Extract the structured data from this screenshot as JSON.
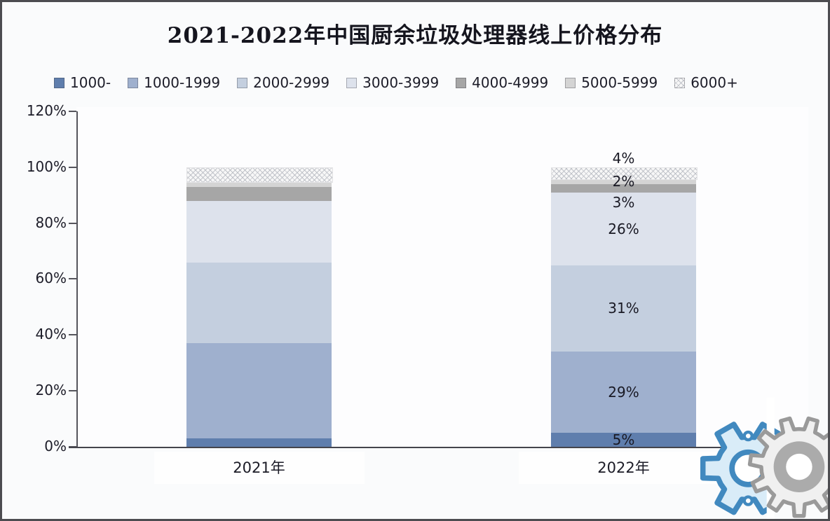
{
  "title": "2021-2022年中国厨余垃圾处理器线上价格分布",
  "legend_items": [
    "1000-",
    "1000-1999",
    "2000-2999",
    "3000-3999",
    "4000-4999",
    "5000-5999",
    "6000+"
  ],
  "y_axis": {
    "ticks": [
      "120%",
      "100%",
      "80%",
      "60%",
      "40%",
      "20%",
      "0%"
    ],
    "tick_values": [
      120,
      100,
      80,
      60,
      40,
      20,
      0
    ]
  },
  "categories": [
    "2021年",
    "2022年"
  ],
  "chart_data": {
    "type": "bar",
    "subtype": "stacked-percent",
    "title": "2021-2022年中国厨余垃圾处理器线上价格分布",
    "categories": [
      "2021年",
      "2022年"
    ],
    "series": [
      {
        "name": "1000-",
        "values": [
          3,
          5
        ],
        "color": "#5f7ead"
      },
      {
        "name": "1000-1999",
        "values": [
          34,
          29
        ],
        "color": "#9fb0ce"
      },
      {
        "name": "2000-2999",
        "values": [
          29,
          31
        ],
        "color": "#c4cfdf"
      },
      {
        "name": "3000-3999",
        "values": [
          22,
          26
        ],
        "color": "#dde2ec"
      },
      {
        "name": "4000-4999",
        "values": [
          5,
          3
        ],
        "color": "#a6a6a6"
      },
      {
        "name": "5000-5999",
        "values": [
          2,
          2
        ],
        "color": "#d4d4d4"
      },
      {
        "name": "6000+",
        "values": [
          5,
          4
        ],
        "color": "pattern"
      }
    ],
    "data_labels_2021_shown": false,
    "data_labels_2022": [
      "5%",
      "29%",
      "31%",
      "26%",
      "3%",
      "2%",
      "4%"
    ],
    "ylim": [
      0,
      120
    ],
    "grid": false,
    "legend_position": "top"
  },
  "colors": {
    "axis": "#45454c",
    "text": "#1c1c28",
    "page_border": "#4c4c50",
    "watermark_blue": "#4189bf",
    "watermark_blue_fill": "#d9ecf8",
    "watermark_gray": "#9a9a9a"
  }
}
